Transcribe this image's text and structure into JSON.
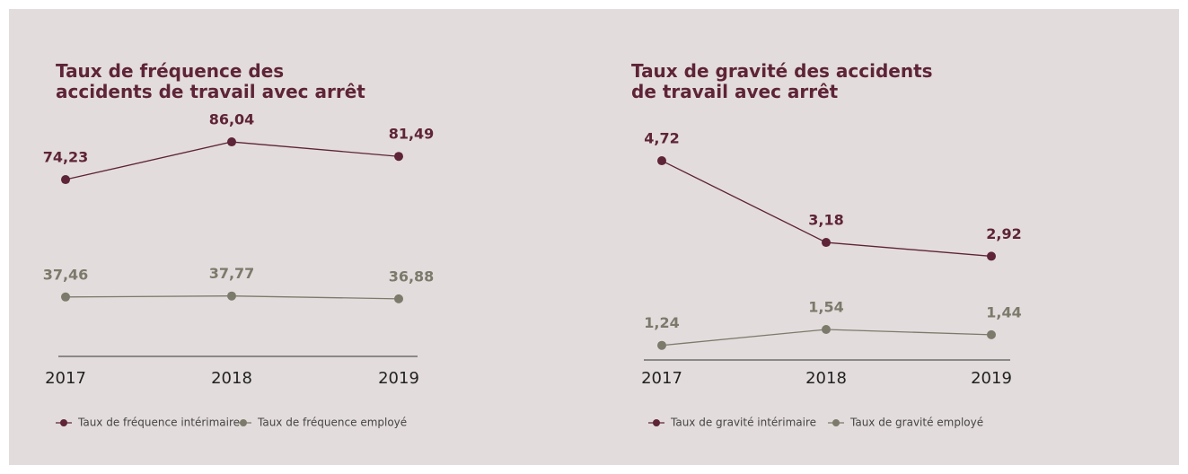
{
  "chart_data": [
    {
      "type": "line",
      "title": "Taux de fréquence des accidents de travail avec arrêt",
      "categories": [
        "2017",
        "2018",
        "2019"
      ],
      "series": [
        {
          "name": "Taux de fréquence intérimaire",
          "color": "#5e2437",
          "values": [
            74.23,
            86.04,
            81.49
          ],
          "value_labels": [
            "74,23",
            "86,04",
            "81,49"
          ]
        },
        {
          "name": "Taux de fréquence employé",
          "color": "#7b7a6b",
          "values": [
            37.46,
            37.77,
            36.88
          ],
          "value_labels": [
            "37,46",
            "37,77",
            "36,88"
          ]
        }
      ],
      "ylim": [
        0,
        100
      ]
    },
    {
      "type": "line",
      "title": "Taux de gravité des accidents de travail avec arrêt",
      "categories": [
        "2017",
        "2018",
        "2019"
      ],
      "series": [
        {
          "name": "Taux de gravité intérimaire",
          "color": "#5e2437",
          "values": [
            4.72,
            3.18,
            2.92
          ],
          "value_labels": [
            "4,72",
            "3,18",
            "2,92"
          ]
        },
        {
          "name": "Taux de gravité employé",
          "color": "#7b7a6b",
          "values": [
            1.24,
            1.54,
            1.44
          ],
          "value_labels": [
            "1,24",
            "1,54",
            "1,44"
          ]
        }
      ],
      "ylim": [
        0,
        5
      ]
    }
  ]
}
